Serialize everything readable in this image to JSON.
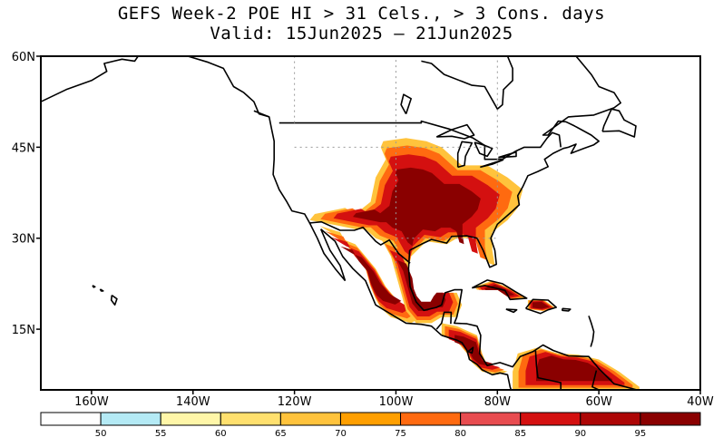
{
  "title": {
    "line1": "GEFS Week-2 POE HI > 31 Cels., > 3 Cons. days",
    "line2": "Valid: 15Jun2025 – 21Jun2025"
  },
  "map": {
    "lon_range": [
      -170,
      -40
    ],
    "lat_range": [
      5,
      60
    ],
    "lat_ticks": [
      {
        "value": 60,
        "label": "60N"
      },
      {
        "value": 45,
        "label": "45N"
      },
      {
        "value": 30,
        "label": "30N"
      },
      {
        "value": 15,
        "label": "15N"
      }
    ],
    "lon_ticks": [
      {
        "value": -160,
        "label": "160W"
      },
      {
        "value": -140,
        "label": "140W"
      },
      {
        "value": -120,
        "label": "120W"
      },
      {
        "value": -100,
        "label": "100W"
      },
      {
        "value": -80,
        "label": "80W"
      },
      {
        "value": -60,
        "label": "60W"
      },
      {
        "value": -40,
        "label": "40W"
      }
    ],
    "regions": [
      {
        "name": "Central and Southern US",
        "band": [
          [
            -102.5,
            46
          ],
          [
            -98,
            46.5
          ],
          [
            -94,
            46
          ],
          [
            -91,
            45
          ],
          [
            -87,
            42
          ],
          [
            -82,
            42
          ],
          [
            -78,
            40
          ],
          [
            -75,
            38
          ],
          [
            -76,
            35
          ],
          [
            -78,
            33
          ],
          [
            -81,
            31
          ],
          [
            -81,
            28
          ],
          [
            -80.5,
            25.5
          ],
          [
            -82,
            26
          ],
          [
            -83,
            29
          ],
          [
            -85,
            30
          ],
          [
            -88,
            30
          ],
          [
            -90,
            29
          ],
          [
            -94,
            29.5
          ],
          [
            -97,
            27
          ],
          [
            -97.5,
            25
          ],
          [
            -99,
            26
          ],
          [
            -101,
            29
          ],
          [
            -104,
            30
          ],
          [
            -106,
            31.5
          ],
          [
            -108,
            31.5
          ],
          [
            -111,
            32
          ],
          [
            -114,
            32.5
          ],
          [
            -117,
            33
          ],
          [
            -116,
            34
          ],
          [
            -113,
            34.5
          ],
          [
            -110,
            35
          ],
          [
            -108,
            34
          ],
          [
            -105,
            36
          ],
          [
            -104,
            40
          ],
          [
            -102,
            43
          ],
          [
            -103,
            45
          ]
        ]
      },
      {
        "name": "Mexico west",
        "band": [
          [
            -115,
            32
          ],
          [
            -111,
            31
          ],
          [
            -109,
            28
          ],
          [
            -106,
            25
          ],
          [
            -105,
            22
          ],
          [
            -104,
            20
          ],
          [
            -103,
            18.5
          ],
          [
            -101,
            17
          ],
          [
            -99,
            16.5
          ],
          [
            -97,
            16
          ],
          [
            -95,
            17
          ],
          [
            -99,
            19
          ],
          [
            -102,
            22
          ],
          [
            -104,
            25
          ],
          [
            -106,
            27
          ],
          [
            -108,
            29
          ],
          [
            -111,
            30
          ],
          [
            -113,
            31
          ]
        ]
      },
      {
        "name": "Mexico east",
        "band": [
          [
            -103,
            30
          ],
          [
            -100,
            29
          ],
          [
            -98,
            25
          ],
          [
            -97.5,
            22
          ],
          [
            -96.5,
            20
          ],
          [
            -95,
            18.5
          ],
          [
            -92,
            18.5
          ],
          [
            -91,
            20
          ],
          [
            -90,
            21
          ],
          [
            -88,
            21
          ],
          [
            -87,
            19
          ],
          [
            -88,
            17
          ],
          [
            -91,
            17
          ],
          [
            -93,
            16
          ],
          [
            -96,
            16
          ],
          [
            -98,
            18
          ],
          [
            -99,
            21
          ],
          [
            -100,
            24
          ],
          [
            -101,
            27
          ]
        ]
      },
      {
        "name": "Central America",
        "band": [
          [
            -91,
            16
          ],
          [
            -88,
            15.5
          ],
          [
            -84,
            14
          ],
          [
            -83,
            11
          ],
          [
            -82,
            9
          ],
          [
            -80,
            8.5
          ],
          [
            -78,
            8
          ],
          [
            -80,
            7.5
          ],
          [
            -83,
            8
          ],
          [
            -85,
            9.5
          ],
          [
            -86,
            11
          ],
          [
            -88,
            13
          ],
          [
            -91,
            14
          ]
        ]
      },
      {
        "name": "Cuba",
        "band": [
          [
            -84.5,
            22
          ],
          [
            -81,
            23
          ],
          [
            -77,
            21.5
          ],
          [
            -74.5,
            20.2
          ],
          [
            -77,
            19.8
          ],
          [
            -80,
            21.5
          ],
          [
            -84,
            21.5
          ]
        ]
      },
      {
        "name": "Hispaniola",
        "band": [
          [
            -74,
            19.8
          ],
          [
            -71,
            19.9
          ],
          [
            -68.5,
            18.5
          ],
          [
            -71,
            18
          ],
          [
            -74,
            18.3
          ]
        ]
      },
      {
        "name": "Northern South America",
        "band": [
          [
            -76,
            11
          ],
          [
            -72,
            12
          ],
          [
            -68,
            11
          ],
          [
            -64,
            10.8
          ],
          [
            -60,
            10
          ],
          [
            -56,
            8
          ],
          [
            -52,
            5.5
          ],
          [
            -52,
            5
          ],
          [
            -77,
            5
          ],
          [
            -77,
            8
          ]
        ]
      }
    ]
  },
  "colorbar": {
    "levels": [
      "50",
      "55",
      "60",
      "65",
      "70",
      "75",
      "80",
      "85",
      "90",
      "95"
    ],
    "colors": [
      "#ffffff",
      "#b4eaf5",
      "#fff6a8",
      "#ffe06e",
      "#ffc33c",
      "#ff9f00",
      "#ff6a10",
      "#e84c50",
      "#d41010",
      "#ad0606",
      "#8a0000"
    ]
  }
}
